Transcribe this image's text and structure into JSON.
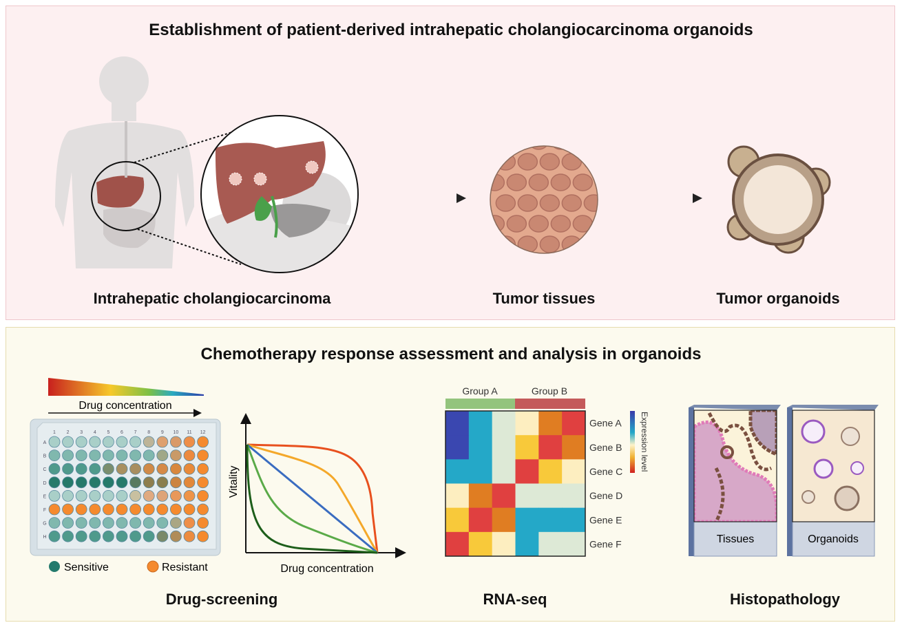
{
  "top_panel": {
    "title": "Establishment of patient-derived intrahepatic cholangiocarcinoma organoids",
    "labels": [
      "Intrahepatic cholangiocarcinoma",
      "Tumor tissues",
      "Tumor organoids"
    ]
  },
  "bottom_panel": {
    "title": "Chemotherapy response assessment and analysis in organoids",
    "section_labels": [
      "Drug-screening",
      "RNA-seq",
      "Histopathology"
    ]
  },
  "drug_screening": {
    "gradient_label": "Drug concentration",
    "columns": [
      "1",
      "2",
      "3",
      "4",
      "5",
      "6",
      "7",
      "8",
      "9",
      "10",
      "11",
      "12"
    ],
    "rows": [
      "A",
      "B",
      "C",
      "D",
      "E",
      "F",
      "G",
      "H"
    ],
    "wells": [
      [
        "#a9cfc8",
        "#a9cfc8",
        "#a9cfc8",
        "#a9cfc8",
        "#a9cfc8",
        "#a9cfc8",
        "#a9cfc8",
        "#bdb498",
        "#dea06e",
        "#d99a68",
        "#ee8e48",
        "#f58a2e"
      ],
      [
        "#80b8ae",
        "#80b8ae",
        "#80b8ae",
        "#80b8ae",
        "#80b8ae",
        "#80b8ae",
        "#80b8ae",
        "#80b8ae",
        "#a0a888",
        "#c99a68",
        "#ec8a3e",
        "#f58a2e"
      ],
      [
        "#4f9a8c",
        "#4f9a8c",
        "#4f9a8c",
        "#4f9a8c",
        "#7a8e6e",
        "#a89060",
        "#a88e60",
        "#d08a48",
        "#d58a48",
        "#d8883e",
        "#e88a3a",
        "#f58a2e"
      ],
      [
        "#267a6a",
        "#267a6a",
        "#267a6a",
        "#267a6a",
        "#267a6a",
        "#267a6a",
        "#587a60",
        "#8e7e4e",
        "#8a7e4e",
        "#cc8440",
        "#e2883a",
        "#f58a2e"
      ],
      [
        "#a9cfc8",
        "#a9cfc8",
        "#a9cfc8",
        "#a9cfc8",
        "#a9cfc8",
        "#a9cfc8",
        "#c8c0a0",
        "#e0aa80",
        "#dea478",
        "#e8985a",
        "#ee9448",
        "#f58a2e"
      ],
      [
        "#f58a2e",
        "#f58a2e",
        "#f58a2e",
        "#f58a2e",
        "#f58a2e",
        "#f58a2e",
        "#f58a2e",
        "#f58a2e",
        "#f58a2e",
        "#f58a2e",
        "#f58a2e",
        "#f58a2e"
      ],
      [
        "#80b8ae",
        "#80b8ae",
        "#80b8ae",
        "#80b8ae",
        "#80b8ae",
        "#80b8ae",
        "#80b8ae",
        "#80b8ae",
        "#80b8ae",
        "#aaa684",
        "#ee8e48",
        "#f58a2e"
      ],
      [
        "#4f9a8c",
        "#4f9a8c",
        "#4f9a8c",
        "#4f9a8c",
        "#4f9a8c",
        "#4f9a8c",
        "#4f9a8c",
        "#4f9a8c",
        "#7a8a6a",
        "#b08c58",
        "#ec8c40",
        "#f58a2e"
      ]
    ],
    "legend": [
      {
        "label": "Sensitive",
        "color": "#237a6c"
      },
      {
        "label": "Resistant",
        "color": "#f58a2e"
      }
    ],
    "curve_plot": {
      "ylabel": "Vitality",
      "xlabel": "Drug concentration",
      "curve_colors": [
        "#e8501e",
        "#f4a82a",
        "#3a6cc0",
        "#5aaa48",
        "#1d5e1a"
      ]
    }
  },
  "rna_seq": {
    "groups": [
      {
        "label": "Group A",
        "color": "#93c47d"
      },
      {
        "label": "Group B",
        "color": "#c45a5a"
      }
    ],
    "genes": [
      "Gene A",
      "Gene B",
      "Gene C",
      "Gene D",
      "Gene E",
      "Gene F"
    ],
    "heatmap": [
      [
        "#3a47b0",
        "#24a8c8",
        "#dde9d6",
        "#fdeec0",
        "#e07d22",
        "#e04040"
      ],
      [
        "#3a47b0",
        "#24a8c8",
        "#dde9d6",
        "#f8c93a",
        "#e04040",
        "#e07d22"
      ],
      [
        "#24a8c8",
        "#24a8c8",
        "#dde9d6",
        "#e04040",
        "#f8c93a",
        "#fdeec0"
      ],
      [
        "#fdeec0",
        "#e07d22",
        "#e04040",
        "#dde9d6",
        "#dde9d6",
        "#dde9d6"
      ],
      [
        "#f8c93a",
        "#e04040",
        "#e07d22",
        "#24a8c8",
        "#24a8c8",
        "#24a8c8"
      ],
      [
        "#e04040",
        "#f8c93a",
        "#fdeec0",
        "#24a8c8",
        "#dde9d6",
        "#dde9d6"
      ]
    ],
    "colorbar_label": "Expression level"
  },
  "histopathology": {
    "slides": [
      "Tissues",
      "Organoids"
    ]
  }
}
